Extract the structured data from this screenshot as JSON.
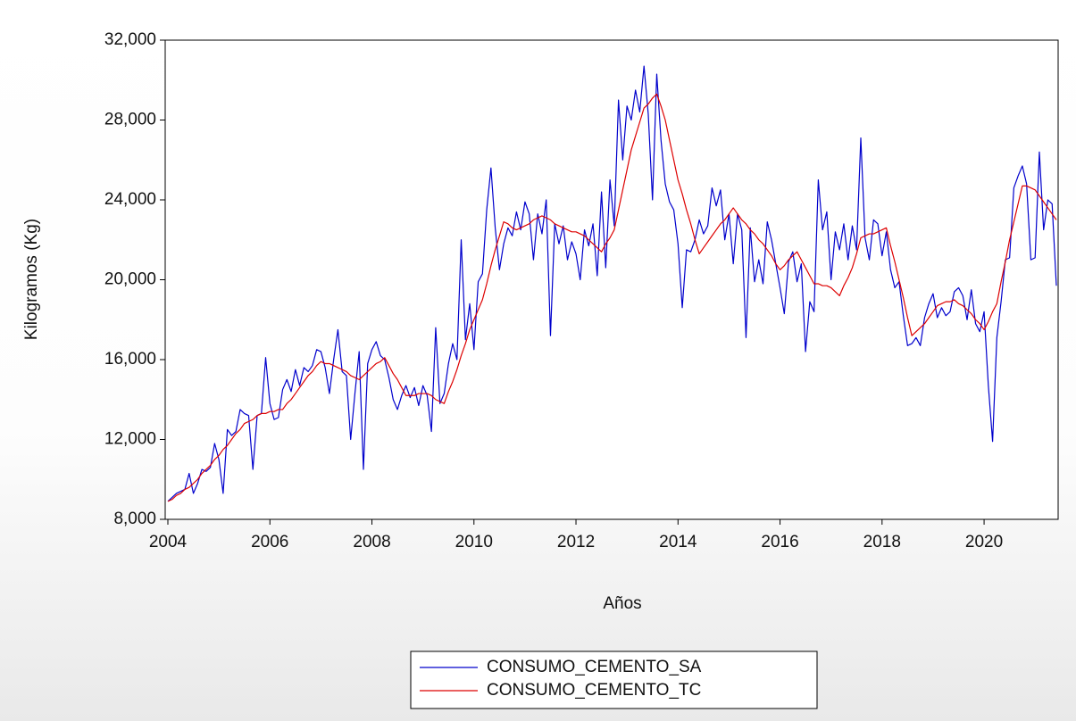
{
  "chart_data": {
    "type": "line",
    "x_label": "Años",
    "y_label": "Kilogramos (Kg)",
    "categories": [
      "2004",
      null,
      null,
      null,
      null,
      null,
      null,
      null,
      null,
      null,
      null,
      null,
      null,
      null,
      null,
      null,
      null,
      null,
      null,
      null,
      null,
      null,
      null,
      null,
      "2006",
      null,
      null,
      null,
      null,
      null,
      null,
      null,
      null,
      null,
      null,
      null,
      null,
      null,
      null,
      null,
      null,
      null,
      null,
      null,
      null,
      null,
      null,
      null,
      "2008",
      null,
      null,
      null,
      null,
      null,
      null,
      null,
      null,
      null,
      null,
      null,
      null,
      null,
      null,
      null,
      null,
      null,
      null,
      null,
      null,
      null,
      null,
      null,
      "2010",
      null,
      null,
      null,
      null,
      null,
      null,
      null,
      null,
      null,
      null,
      null,
      null,
      null,
      null,
      null,
      null,
      null,
      null,
      null,
      null,
      null,
      null,
      null,
      "2012",
      null,
      null,
      null,
      null,
      null,
      null,
      null,
      null,
      null,
      null,
      null,
      null,
      null,
      null,
      null,
      null,
      null,
      null,
      null,
      null,
      null,
      null,
      null,
      "2014",
      null,
      null,
      null,
      null,
      null,
      null,
      null,
      null,
      null,
      null,
      null,
      null,
      null,
      null,
      null,
      null,
      null,
      null,
      null,
      null,
      null,
      null,
      null,
      "2016",
      null,
      null,
      null,
      null,
      null,
      null,
      null,
      null,
      null,
      null,
      null,
      null,
      null,
      null,
      null,
      null,
      null,
      null,
      null,
      null,
      null,
      null,
      null,
      "2018",
      null,
      null,
      null,
      null,
      null,
      null,
      null,
      null,
      null,
      null,
      null,
      null,
      null,
      null,
      null,
      null,
      null,
      null,
      null,
      null,
      null,
      null,
      null,
      "2020",
      null,
      null,
      null,
      null,
      null,
      null,
      null,
      null,
      null,
      null,
      null,
      null,
      null,
      null,
      null,
      null,
      null
    ],
    "series": [
      {
        "name": "CONSUMO_CEMENTO_SA",
        "color": "#0000cc",
        "values": [
          8900,
          9100,
          9300,
          9400,
          9500,
          10300,
          9300,
          9800,
          10500,
          10400,
          10600,
          11800,
          11000,
          9300,
          12500,
          12200,
          12400,
          13500,
          13300,
          13200,
          10500,
          13200,
          13300,
          16100,
          13800,
          13000,
          13100,
          14500,
          15000,
          14400,
          15500,
          14700,
          15600,
          15400,
          15700,
          16500,
          16400,
          15600,
          14300,
          16000,
          17500,
          15400,
          15200,
          12000,
          14300,
          16400,
          10500,
          15800,
          16500,
          16900,
          16200,
          16000,
          15100,
          14000,
          13500,
          14200,
          14700,
          14100,
          14600,
          13700,
          14700,
          14200,
          12400,
          17600,
          13800,
          14300,
          15800,
          16800,
          16000,
          22000,
          17000,
          18800,
          16500,
          19900,
          20300,
          23500,
          25600,
          22600,
          20500,
          21800,
          22600,
          22200,
          23400,
          22500,
          23900,
          23300,
          21000,
          23300,
          22300,
          24000,
          17200,
          22800,
          21800,
          22700,
          21000,
          21900,
          21300,
          20000,
          22500,
          21700,
          22800,
          20200,
          24400,
          20600,
          25000,
          22700,
          29000,
          26000,
          28700,
          28000,
          29500,
          28400,
          30700,
          28300,
          24000,
          30300,
          27000,
          24800,
          23900,
          23500,
          21800,
          18600,
          21500,
          21400,
          22000,
          23000,
          22300,
          22700,
          24600,
          23700,
          24500,
          22000,
          23300,
          20800,
          23300,
          22500,
          17100,
          22600,
          19900,
          21000,
          19800,
          22900,
          22000,
          20800,
          19600,
          18300,
          20900,
          21400,
          19900,
          20800,
          16400,
          18900,
          18400,
          25000,
          22500,
          23400,
          20000,
          22400,
          21500,
          22800,
          21000,
          22700,
          21500,
          27100,
          22100,
          21000,
          23000,
          22800,
          21200,
          22400,
          20500,
          19600,
          19900,
          18200,
          16700,
          16800,
          17100,
          16700,
          18100,
          18800,
          19300,
          18100,
          18600,
          18200,
          18400,
          19400,
          19600,
          19200,
          18000,
          19500,
          17800,
          17400,
          18400,
          14700,
          11900,
          17100,
          18900,
          21000,
          21100,
          24600,
          25200,
          25700,
          24800,
          21000,
          21100,
          26400,
          22500,
          24000,
          23800,
          19700
        ]
      },
      {
        "name": "CONSUMO_CEMENTO_TC",
        "color": "#dd0000",
        "values": [
          8900,
          9000,
          9200,
          9300,
          9500,
          9600,
          9800,
          10000,
          10300,
          10500,
          10700,
          11000,
          11200,
          11500,
          11700,
          12000,
          12300,
          12500,
          12800,
          12900,
          13000,
          13200,
          13300,
          13300,
          13400,
          13400,
          13500,
          13500,
          13800,
          14000,
          14300,
          14600,
          14900,
          15200,
          15400,
          15700,
          15900,
          15800,
          15800,
          15700,
          15600,
          15500,
          15400,
          15200,
          15100,
          15000,
          15200,
          15400,
          15600,
          15800,
          15900,
          16100,
          15700,
          15300,
          15000,
          14600,
          14200,
          14200,
          14200,
          14300,
          14300,
          14300,
          14200,
          14000,
          13900,
          13800,
          14400,
          14900,
          15500,
          16200,
          16800,
          17500,
          18000,
          18500,
          19000,
          19800,
          20700,
          21500,
          22200,
          22900,
          22800,
          22600,
          22500,
          22600,
          22700,
          22800,
          23000,
          23100,
          23200,
          23100,
          23000,
          22800,
          22700,
          22600,
          22500,
          22400,
          22400,
          22300,
          22200,
          22000,
          21800,
          21600,
          21400,
          21800,
          22100,
          22500,
          23500,
          24500,
          25500,
          26500,
          27200,
          27900,
          28600,
          28800,
          29100,
          29300,
          28700,
          28000,
          27000,
          26000,
          25000,
          24300,
          23500,
          22800,
          22000,
          21300,
          21600,
          21900,
          22200,
          22500,
          22800,
          23000,
          23300,
          23600,
          23300,
          23000,
          22800,
          22500,
          22300,
          22000,
          21800,
          21500,
          21200,
          20800,
          20500,
          20700,
          21000,
          21200,
          21400,
          21000,
          20600,
          20200,
          19800,
          19800,
          19700,
          19700,
          19600,
          19400,
          19200,
          19700,
          20100,
          20600,
          21300,
          22100,
          22200,
          22300,
          22300,
          22400,
          22500,
          22600,
          21700,
          20900,
          20000,
          19100,
          18100,
          17200,
          17400,
          17600,
          17800,
          18100,
          18400,
          18700,
          18800,
          18900,
          18900,
          19000,
          18800,
          18700,
          18500,
          18300,
          18000,
          17800,
          17500,
          17900,
          18400,
          18800,
          19900,
          20900,
          22000,
          22900,
          23800,
          24700,
          24700,
          24600,
          24500,
          24200,
          23900,
          23600,
          23300,
          23000
        ]
      }
    ],
    "ylim": [
      8000,
      32000
    ],
    "yticks": [
      {
        "value": 8000,
        "label": "8,000"
      },
      {
        "value": 12000,
        "label": "12,000"
      },
      {
        "value": 16000,
        "label": "16,000"
      },
      {
        "value": 20000,
        "label": "20,000"
      },
      {
        "value": 24000,
        "label": "24,000"
      },
      {
        "value": 28000,
        "label": "28,000"
      },
      {
        "value": 32000,
        "label": "32,000"
      }
    ],
    "grid": false,
    "legend": "bottom"
  }
}
